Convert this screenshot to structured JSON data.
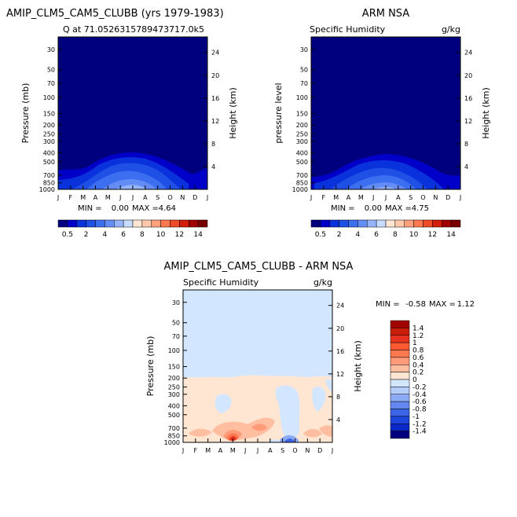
{
  "top_left_title": "AMIP_CLM5_CAM5_CLUBB (yrs 1979-1983)",
  "top_right_title": "ARM NSA",
  "bottom_title": "AMIP_CLM5_CAM5_CLUBB - ARM NSA",
  "chart_data": [
    {
      "type": "heatmap",
      "subtitle_left": "Q at 71.0526315789473717.0k5",
      "subtitle_right": "",
      "ylabel": "Pressure (mb)",
      "y2label": "Height (km)",
      "xlabel": "",
      "x_ticks": [
        "J",
        "F",
        "M",
        "A",
        "M",
        "J",
        "J",
        "A",
        "S",
        "O",
        "N",
        "D",
        "J"
      ],
      "pressure_ticks": [
        "30",
        "50",
        "70",
        "100",
        "150",
        "200",
        "250",
        "300",
        "400",
        "500",
        "700",
        "850",
        "1000"
      ],
      "height_ticks": [
        "24",
        "20",
        "16",
        "12",
        "8",
        "4"
      ],
      "min_label": "MIN =",
      "min_value": "0.00",
      "max_label": "MAX =",
      "max_value": "4.64",
      "colorbar_labels": [
        "0.5",
        "2",
        "4",
        "6",
        "8",
        "10",
        "12",
        "14"
      ],
      "colorbar_colors": [
        "#00007f",
        "#0000c8",
        "#0a32dc",
        "#1e50e6",
        "#3c6ef0",
        "#648cf5",
        "#96b4fa",
        "#c8dcff",
        "#ffe6d2",
        "#ffc8aa",
        "#ffa07d",
        "#ff7850",
        "#f04b28",
        "#d21e0a",
        "#a00000",
        "#780000"
      ]
    },
    {
      "type": "heatmap",
      "subtitle_left": "Specific Humidity",
      "subtitle_right": "g/kg",
      "ylabel": "pressure level",
      "y2label": "Height (km)",
      "xlabel": "",
      "x_ticks": [
        "J",
        "F",
        "M",
        "A",
        "M",
        "J",
        "J",
        "A",
        "S",
        "O",
        "N",
        "D",
        "J"
      ],
      "pressure_ticks": [
        "30",
        "50",
        "70",
        "100",
        "150",
        "200",
        "250",
        "300",
        "400",
        "500",
        "700",
        "850",
        "1000"
      ],
      "height_ticks": [
        "24",
        "20",
        "16",
        "12",
        "8",
        "4"
      ],
      "min_label": "MIN =",
      "min_value": "0.00",
      "max_label": "MAX =",
      "max_value": "4.75",
      "colorbar_labels": [
        "0.5",
        "2",
        "4",
        "6",
        "8",
        "10",
        "12",
        "14"
      ],
      "colorbar_colors": [
        "#00007f",
        "#0000c8",
        "#0a32dc",
        "#1e50e6",
        "#3c6ef0",
        "#648cf5",
        "#96b4fa",
        "#c8dcff",
        "#ffe6d2",
        "#ffc8aa",
        "#ffa07d",
        "#ff7850",
        "#f04b28",
        "#d21e0a",
        "#a00000",
        "#780000"
      ]
    },
    {
      "type": "heatmap",
      "subtitle_left": "Specific Humidity",
      "subtitle_right": "g/kg",
      "ylabel": "Pressure (mb)",
      "y2label": "Height (km)",
      "xlabel": "",
      "x_ticks": [
        "J",
        "F",
        "M",
        "A",
        "M",
        "J",
        "J",
        "A",
        "S",
        "O",
        "N",
        "D",
        "J"
      ],
      "pressure_ticks": [
        "30",
        "50",
        "70",
        "100",
        "150",
        "200",
        "250",
        "300",
        "400",
        "500",
        "700",
        "850",
        "1000"
      ],
      "height_ticks": [
        "24",
        "20",
        "16",
        "12",
        "8",
        "4"
      ],
      "min_label": "MIN =",
      "min_value": "-0.58",
      "max_label": "MAX =",
      "max_value": "1.12",
      "colorbar_labels": [
        "1.4",
        "1.2",
        "1",
        "0.8",
        "0.6",
        "0.4",
        "0.2",
        "0",
        "-0.2",
        "-0.4",
        "-0.6",
        "-0.8",
        "-1",
        "-1.2",
        "-1.4"
      ],
      "colorbar_colors": [
        "#a00000",
        "#c81e0a",
        "#e6321e",
        "#ff5a32",
        "#ff7850",
        "#ff9b78",
        "#ffbea0",
        "#ffe6d2",
        "#d2e6ff",
        "#b4cdfa",
        "#8caaf5",
        "#6488f0",
        "#3c64e6",
        "#1e46dc",
        "#0a28c8",
        "#00007f"
      ]
    }
  ]
}
